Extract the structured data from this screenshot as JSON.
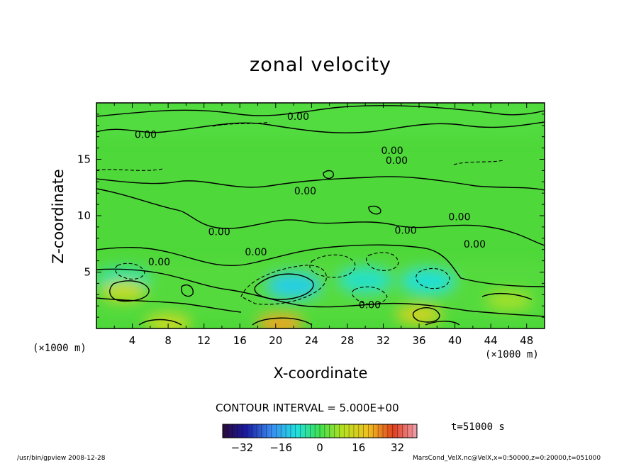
{
  "chart_data": {
    "type": "heatmap",
    "title": "zonal velocity",
    "xlabel": "X-coordinate",
    "ylabel": "Z-coordinate",
    "x_unit_label": "(×1000 m)",
    "x_ticks": [
      4,
      8,
      12,
      16,
      20,
      24,
      28,
      32,
      36,
      40,
      44,
      48
    ],
    "y_ticks": [
      5,
      10,
      15
    ],
    "xlim": [
      0,
      50
    ],
    "ylim": [
      0,
      20
    ],
    "contour_interval_text": "CONTOUR INTERVAL = 5.000E+00",
    "colorbar": {
      "ticks": [
        -32,
        -16,
        0,
        16,
        32
      ],
      "range": [
        -40,
        40
      ]
    },
    "time_text": "t=51000 s",
    "contour_labels": [
      {
        "text": "0.00",
        "x": 22.5,
        "z": 18.8
      },
      {
        "text": "0.00",
        "x": 5.5,
        "z": 17.2
      },
      {
        "text": "0.00",
        "x": 33.0,
        "z": 15.8
      },
      {
        "text": "0.00",
        "x": 33.5,
        "z": 14.9
      },
      {
        "text": "0.00",
        "x": 23.3,
        "z": 12.2
      },
      {
        "text": "0.00",
        "x": 40.5,
        "z": 9.9
      },
      {
        "text": "0.00",
        "x": 13.7,
        "z": 8.6
      },
      {
        "text": "0.00",
        "x": 34.5,
        "z": 8.7
      },
      {
        "text": "0.00",
        "x": 42.2,
        "z": 7.5
      },
      {
        "text": "0.00",
        "x": 17.8,
        "z": 6.8
      },
      {
        "text": "0.00",
        "x": 7.0,
        "z": 5.9
      },
      {
        "text": "0.00",
        "x": 30.5,
        "z": 2.1
      }
    ],
    "features": [
      {
        "label": "negative core",
        "x": 22,
        "z": 3.8,
        "value": -12
      },
      {
        "label": "negative cell",
        "x": 30,
        "z": 4.3,
        "value": -8
      },
      {
        "label": "negative cell",
        "x": 37,
        "z": 4.2,
        "value": -9
      },
      {
        "label": "negative cell",
        "x": 3,
        "z": 4.3,
        "value": -6
      },
      {
        "label": "positive surface jet",
        "x": 20.5,
        "z": 0.4,
        "value": 22
      },
      {
        "label": "positive surface jet",
        "x": 8,
        "z": 0.4,
        "value": 12
      },
      {
        "label": "positive cell",
        "x": 3,
        "z": 3.3,
        "value": 12
      },
      {
        "label": "positive cell",
        "x": 36,
        "z": 1.2,
        "value": 14
      },
      {
        "label": "positive cell",
        "x": 46,
        "z": 2.5,
        "value": 8
      }
    ]
  },
  "footer": {
    "left": "/usr/bin/gpview   2008-12-28",
    "right": "MarsCond_VelX.nc@VelX,x=0:50000,z=0:20000,t=051000"
  }
}
